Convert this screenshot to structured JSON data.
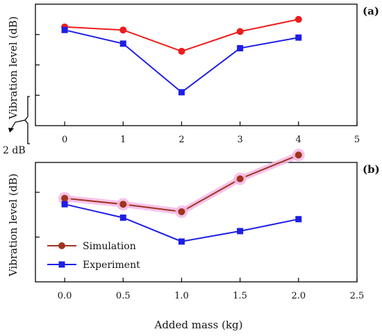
{
  "figure": {
    "panel_a_label": "(a)",
    "panel_b_label": "(b)",
    "scale_bar_label": "2 dB",
    "shared_xlabel": "Added mass (kg)"
  },
  "colors": {
    "sim_a": "#ee1c1c",
    "exp": "#1e1ee6",
    "sim_b": "#a0341c",
    "sim_b_glow": "#f4b8e6",
    "axis": "#000000"
  },
  "chart_data": [
    {
      "type": "line",
      "panel": "(a)",
      "xlabel": "",
      "ylabel": "Vibration level (dB)",
      "xlim": [
        -0.5,
        5
      ],
      "xticks": [
        0,
        1,
        2,
        3,
        4,
        5
      ],
      "xtick_labels": [
        "0",
        "1",
        "2",
        "3",
        "4",
        "5"
      ],
      "ylim": [
        -1,
        7
      ],
      "yticks": [
        1,
        3,
        5
      ],
      "ytick_labels": [
        "",
        "",
        ""
      ],
      "grid": false,
      "legend": "none",
      "x": [
        0,
        1,
        2,
        3,
        4
      ],
      "series": [
        {
          "color": "#ee1c1c",
          "marker": "circle",
          "values": [
            5.5,
            5.3,
            3.9,
            5.2,
            6.0
          ]
        },
        {
          "color": "#1e1ee6",
          "marker": "square",
          "values": [
            5.3,
            4.4,
            1.2,
            4.1,
            4.8
          ]
        }
      ]
    },
    {
      "type": "line",
      "panel": "(b)",
      "xlabel": "Added mass (kg)",
      "ylabel": "Vibration level (dB)",
      "xlim": [
        -0.25,
        2.5
      ],
      "xticks": [
        0.0,
        0.5,
        1.0,
        1.5,
        2.0,
        2.5
      ],
      "xtick_labels": [
        "0.0",
        "0.5",
        "1.0",
        "1.5",
        "2.0",
        "2.5"
      ],
      "ylim": [
        -1,
        7
      ],
      "yticks": [
        2,
        5
      ],
      "ytick_labels": [
        "",
        ""
      ],
      "grid": false,
      "legend": "bottom-left",
      "x": [
        0.0,
        0.5,
        1.0,
        1.5,
        2.0
      ],
      "series": [
        {
          "name": "Simulation",
          "color": "#a0341c",
          "marker": "circle",
          "values": [
            4.6,
            4.2,
            3.7,
            5.9,
            7.5
          ]
        },
        {
          "name": "Experiment",
          "color": "#1e1ee6",
          "marker": "square",
          "values": [
            4.2,
            3.3,
            1.7,
            2.4,
            3.2
          ]
        }
      ]
    }
  ]
}
